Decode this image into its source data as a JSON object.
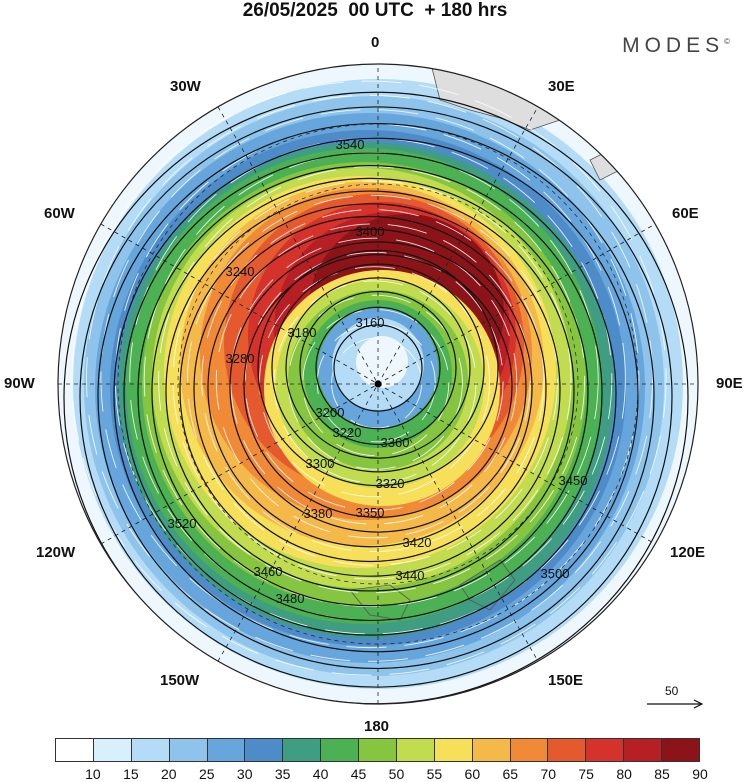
{
  "title": "26/05/2025  00 UTC  + 180 hrs",
  "brand": "MODES",
  "brand_mark": "©",
  "longitude_labels": {
    "n0": "0",
    "n30e": "30E",
    "n60e": "60E",
    "n90e": "90E",
    "n120e": "120E",
    "n150e": "150E",
    "n180": "180",
    "n150w": "150W",
    "n120w": "120W",
    "n90w": "90W",
    "n60w": "60W",
    "n30w": "30W"
  },
  "contour_labels": [
    "3160",
    "3180",
    "3200",
    "3220",
    "3240",
    "3280",
    "3300",
    "3320",
    "3350",
    "3360",
    "3380",
    "3400",
    "3420",
    "3440",
    "3450",
    "3460",
    "3480",
    "3500",
    "3520",
    "3540"
  ],
  "colorbar": {
    "ticks": [
      "10",
      "15",
      "20",
      "25",
      "30",
      "35",
      "40",
      "45",
      "50",
      "55",
      "60",
      "65",
      "70",
      "75",
      "80",
      "85",
      "90"
    ],
    "colors": [
      "#ffffff",
      "#d8effc",
      "#b4dcf6",
      "#8ec3ec",
      "#67a6dc",
      "#4d8cc8",
      "#3f9d82",
      "#4cb152",
      "#86c53f",
      "#c2dc50",
      "#f6e05a",
      "#f5b94a",
      "#f08a37",
      "#e45a2e",
      "#d4322a",
      "#b81f24",
      "#8c1418"
    ]
  },
  "reference_vector": {
    "label": "50"
  },
  "map_data": {
    "projection": "polar stereographic, south pole centered",
    "center_marker": "pole"
  }
}
